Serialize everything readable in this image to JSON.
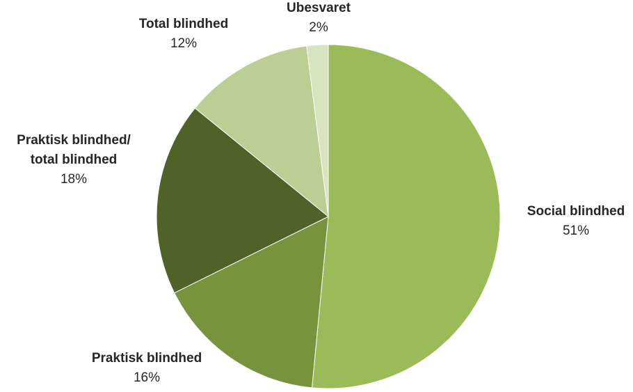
{
  "chart_data": {
    "type": "pie",
    "title": "",
    "start": "top",
    "direction": "clockwise",
    "slices": [
      {
        "label": "Social blindhed",
        "value": 51,
        "value_label": "51%",
        "color": "#9BBB59"
      },
      {
        "label": "Praktisk blindhed",
        "value": 16,
        "value_label": "16%",
        "color": "#77933C"
      },
      {
        "label": "Praktisk blindhed/ total blindhed",
        "label_lines": [
          "Praktisk blindhed/",
          "total blindhed"
        ],
        "value": 18,
        "value_label": "18%",
        "color": "#4F6228"
      },
      {
        "label": "Total blindhed",
        "value": 12,
        "value_label": "12%",
        "color": "#BBCF95"
      },
      {
        "label": "Ubesvaret",
        "value": 2,
        "value_label": "2%",
        "color": "#D7E4BD"
      }
    ]
  }
}
